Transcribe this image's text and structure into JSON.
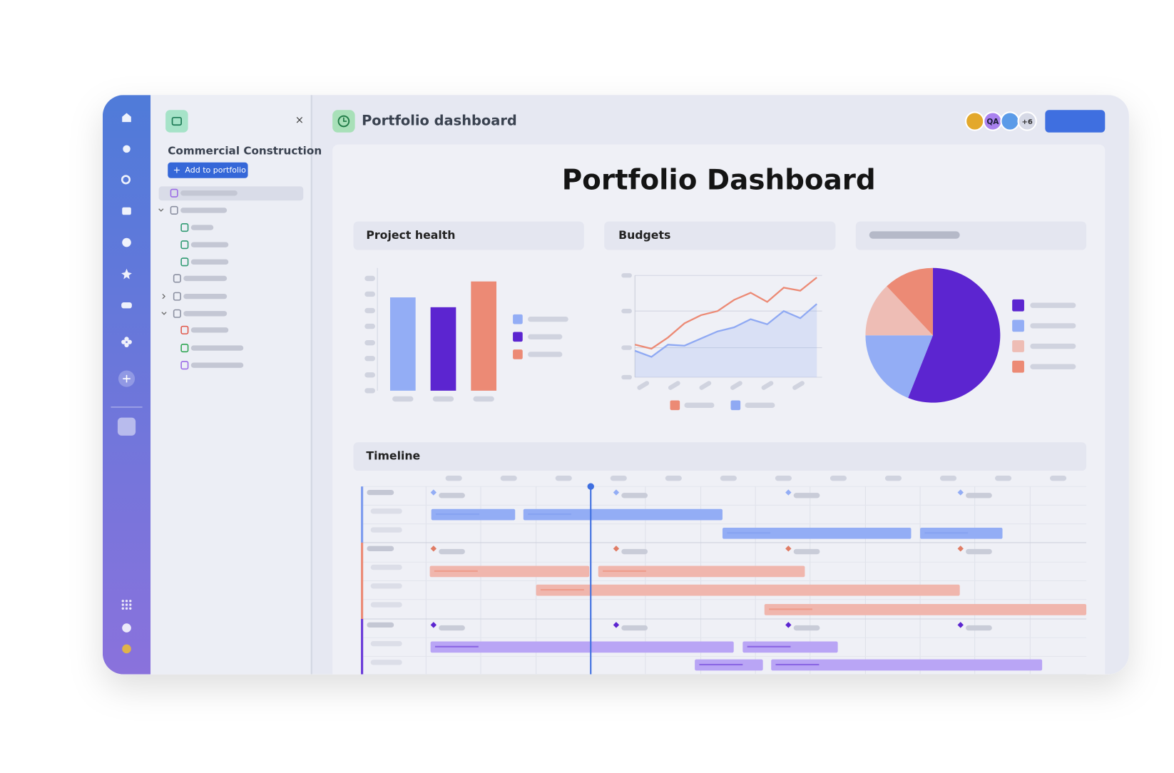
{
  "app": {
    "header_title": "Portfolio dashboard",
    "avatar_initials": "QA",
    "avatar_more": "+6"
  },
  "sidebar": {
    "project": "Commercial Construction",
    "add_button": "Add to portfolio",
    "close": "×"
  },
  "dashboard": {
    "title": "Portfolio Dashboard",
    "timeline_title": "Timeline"
  },
  "charts": [
    {
      "type": "bar",
      "title": "Project health",
      "categories": [
        null,
        null,
        null
      ],
      "values": [
        76,
        68,
        89
      ],
      "colors": [
        "#93adf5",
        "#5c25d0",
        "#ec8a75"
      ],
      "ylim": [
        0,
        100
      ]
    },
    {
      "type": "line",
      "title": "Budgets",
      "categories": [
        null,
        null,
        null,
        null,
        null,
        null,
        null,
        null,
        null,
        null,
        null,
        null
      ],
      "ylim": [
        0,
        100
      ],
      "yticks": [
        0,
        29,
        65,
        100
      ],
      "grid": true,
      "series": [
        {
          "color": "#ec8a75",
          "values": [
            32,
            28,
            39,
            53,
            61,
            65,
            76,
            83,
            74,
            88,
            85,
            98
          ]
        },
        {
          "color": "#8fa9f3",
          "values": [
            26,
            20,
            32,
            31,
            38,
            45,
            49,
            57,
            52,
            65,
            58,
            72
          ]
        }
      ]
    },
    {
      "type": "pie",
      "values": [
        56,
        19,
        13,
        12
      ],
      "colors": [
        "#5c25d0",
        "#93adf5",
        "#eebdb5",
        "#ec8a75"
      ]
    }
  ]
}
